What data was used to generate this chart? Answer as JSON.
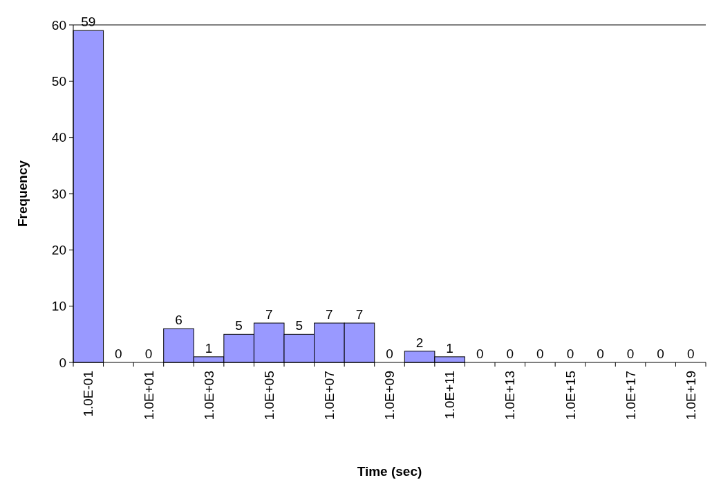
{
  "chart_data": {
    "type": "bar",
    "xlabel": "Time (sec)",
    "ylabel": "Frequency",
    "categories": [
      "1.0E-01",
      null,
      "1.0E+01",
      null,
      "1.0E+03",
      null,
      "1.0E+05",
      null,
      "1.0E+07",
      null,
      "1.0E+09",
      null,
      "1.0E+11",
      null,
      "1.0E+13",
      null,
      "1.0E+15",
      null,
      "1.0E+17",
      null,
      "1.0E+19"
    ],
    "values": [
      59,
      0,
      0,
      6,
      1,
      5,
      7,
      5,
      7,
      7,
      0,
      2,
      1,
      0,
      0,
      0,
      0,
      0,
      0,
      0,
      0
    ],
    "color": "#9999ff",
    "ylim": [
      0,
      60
    ],
    "yticks": [
      0,
      10,
      20,
      30,
      40,
      50,
      60
    ],
    "grid": false,
    "data_labels": true
  }
}
